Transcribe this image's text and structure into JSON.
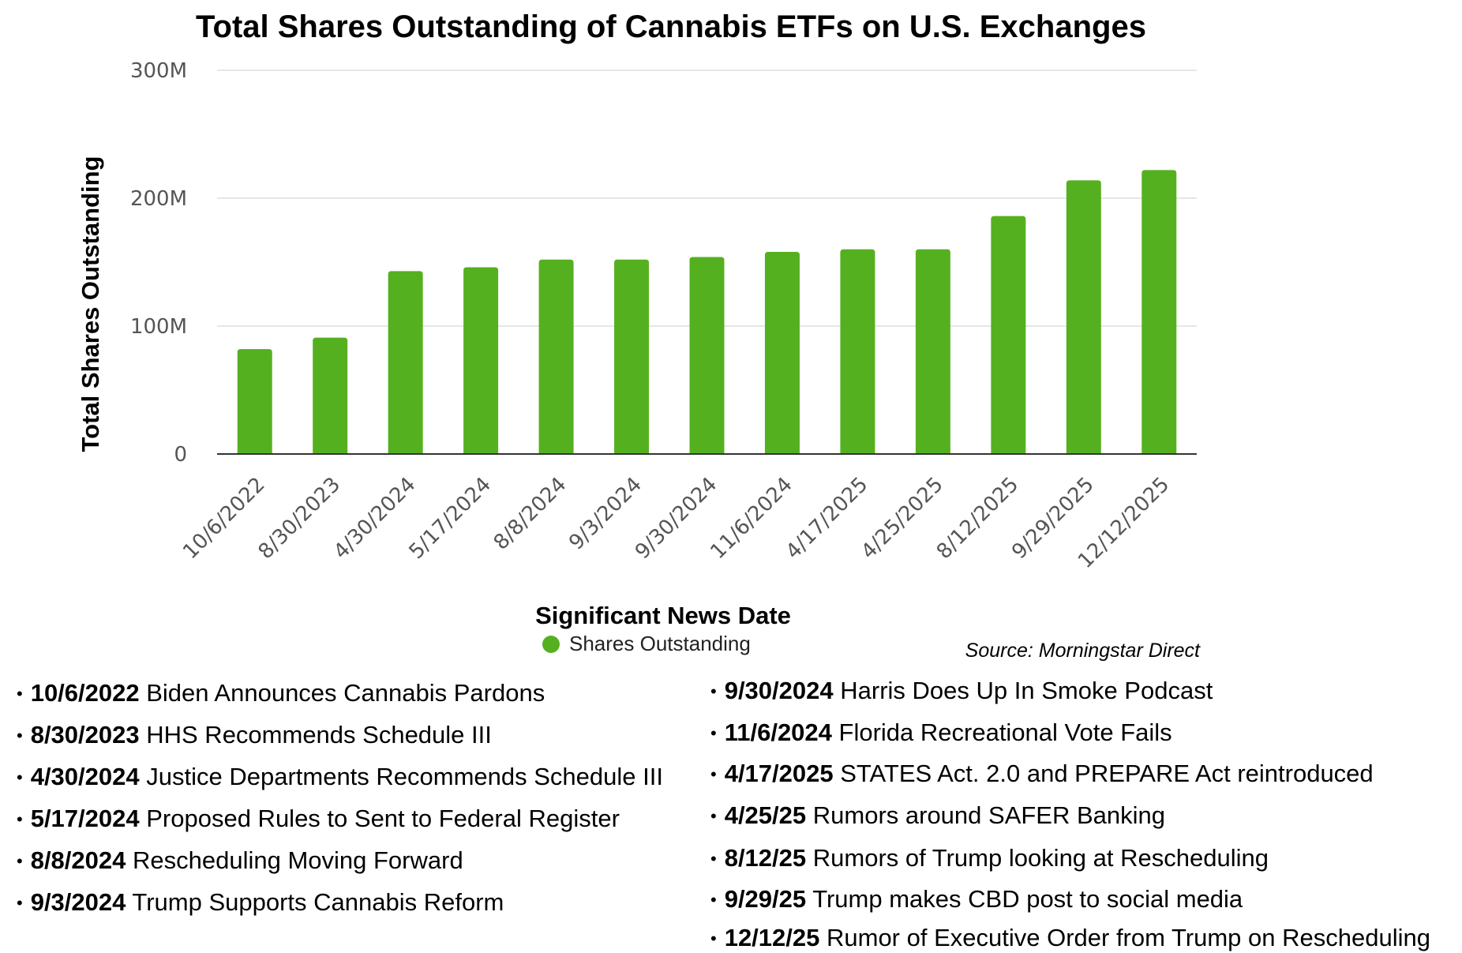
{
  "chart_data": {
    "type": "bar",
    "title": "Total Shares Outstanding of Cannabis ETFs on U.S. Exchanges",
    "xlabel": "Significant News Date",
    "ylabel": "Total Shares Outstanding",
    "ylim": [
      0,
      300000000
    ],
    "yticks": [
      {
        "value": 0,
        "label": "0"
      },
      {
        "value": 100000000,
        "label": "100M"
      },
      {
        "value": 200000000,
        "label": "200M"
      },
      {
        "value": 300000000,
        "label": "300M"
      }
    ],
    "grid": true,
    "legend_position": "bottom",
    "color": "#55b020",
    "categories": [
      "10/6/2022",
      "8/30/2023",
      "4/30/2024",
      "5/17/2024",
      "8/8/2024",
      "9/3/2024",
      "9/30/2024",
      "11/6/2024",
      "4/17/2025",
      "4/25/2025",
      "8/12/2025",
      "9/29/2025",
      "12/12/2025"
    ],
    "series": [
      {
        "name": "Shares Outstanding",
        "values": [
          82000000,
          91000000,
          143000000,
          146000000,
          152000000,
          152000000,
          154000000,
          158000000,
          160000000,
          160000000,
          186000000,
          214000000,
          222000000
        ]
      }
    ]
  },
  "source": "Source: Morningstar Direct",
  "news_left": [
    {
      "date": "10/6/2022",
      "text": "Biden Announces Cannabis Pardons"
    },
    {
      "date": "8/30/2023",
      "text": "HHS Recommends Schedule III"
    },
    {
      "date": "4/30/2024",
      "text": "Justice Departments Recommends Schedule III"
    },
    {
      "date": "5/17/2024",
      "text": "Proposed Rules to Sent to Federal Register"
    },
    {
      "date": "8/8/2024",
      "text": "Rescheduling Moving Forward"
    },
    {
      "date": "9/3/2024",
      "text": "Trump Supports Cannabis Reform"
    }
  ],
  "news_right": [
    {
      "date": "9/30/2024",
      "text": "Harris Does Up In Smoke Podcast"
    },
    {
      "date": "11/6/2024",
      "text": "Florida Recreational Vote Fails"
    },
    {
      "date": "4/17/2025",
      "text": "STATES Act. 2.0 and PREPARE Act reintroduced"
    },
    {
      "date": "4/25/25",
      "text": "Rumors around SAFER Banking"
    },
    {
      "date": "8/12/25",
      "text": "Rumors of Trump looking at Rescheduling"
    },
    {
      "date": "9/29/25",
      "text": "Trump makes CBD post to social media"
    },
    {
      "date": "12/12/25",
      "text": "Rumor of Executive Order from Trump on Rescheduling"
    }
  ]
}
